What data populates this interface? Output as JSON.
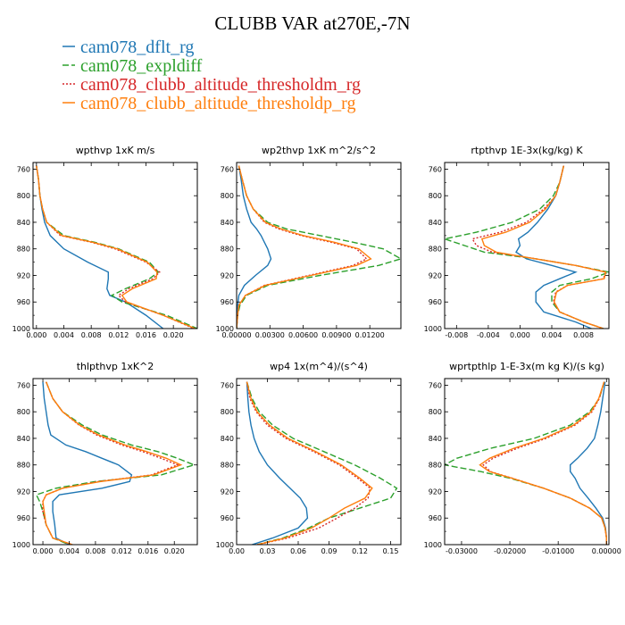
{
  "figure": {
    "title": "CLUBB VAR at270E,-7N",
    "series": [
      {
        "name": "cam078_dflt_rg",
        "color": "#1f77b4",
        "dash": "solid"
      },
      {
        "name": "cam078_expldiff",
        "color": "#2ca02c",
        "dash": "dashed"
      },
      {
        "name": "cam078_clubb_altitude_thresholdm_rg",
        "color": "#d62728",
        "dash": "dotted"
      },
      {
        "name": "cam078_clubb_altitude_thresholdp_rg",
        "color": "#ff7f0e",
        "dash": "solid"
      }
    ]
  },
  "chart_data": [
    {
      "type": "line",
      "title": "wpthvp  1xK m/s",
      "xlim": [
        -0.0005,
        0.0235
      ],
      "ylim": [
        1000,
        750
      ],
      "xticks": [
        "0.000",
        "0.004",
        "0.008",
        "0.012",
        "0.016",
        "0.020"
      ],
      "xtick_values": [
        0,
        0.004,
        0.008,
        0.012,
        0.016,
        0.02
      ],
      "yticks": [
        760,
        800,
        840,
        880,
        920,
        960,
        1000
      ],
      "y": [
        755,
        775,
        800,
        820,
        840,
        860,
        870,
        880,
        900,
        915,
        925,
        940,
        950,
        960,
        980,
        1000
      ],
      "series": [
        {
          "name": "cam078_dflt_rg",
          "values": [
            0,
            0.0003,
            0.0005,
            0.0008,
            0.0012,
            0.002,
            0.003,
            0.004,
            0.0075,
            0.0105,
            0.0105,
            0.0103,
            0.0107,
            0.013,
            0.016,
            0.0185
          ]
        },
        {
          "name": "cam078_expldiff",
          "values": [
            0,
            0.0003,
            0.0005,
            0.0009,
            0.0015,
            0.004,
            0.0085,
            0.012,
            0.0165,
            0.0178,
            0.0165,
            0.013,
            0.011,
            0.0125,
            0.019,
            0.0235
          ]
        },
        {
          "name": "cam078_clubb_altitude_thresholdm_rg",
          "values": [
            0,
            0.0003,
            0.0005,
            0.0009,
            0.0015,
            0.0035,
            0.008,
            0.0115,
            0.016,
            0.018,
            0.017,
            0.0135,
            0.012,
            0.013,
            0.0185,
            0.023
          ]
        },
        {
          "name": "cam078_clubb_altitude_thresholdp_rg",
          "values": [
            0,
            0.0003,
            0.0005,
            0.0009,
            0.0015,
            0.0037,
            0.0082,
            0.0118,
            0.0162,
            0.0176,
            0.0175,
            0.014,
            0.0125,
            0.0132,
            0.0185,
            0.0232
          ]
        }
      ]
    },
    {
      "type": "line",
      "title": "wp2thvp  1xK m^2/s^2",
      "xlim": [
        0,
        0.0148
      ],
      "ylim": [
        1000,
        750
      ],
      "xticks": [
        "0.00000",
        "0.00300",
        "0.00600",
        "0.00900",
        "0.01200"
      ],
      "xtick_values": [
        0,
        0.003,
        0.006,
        0.009,
        0.012
      ],
      "yticks": [
        760,
        800,
        840,
        880,
        920,
        960,
        1000
      ],
      "y": [
        755,
        775,
        800,
        820,
        840,
        850,
        860,
        870,
        880,
        895,
        905,
        920,
        935,
        950,
        965,
        980,
        1000
      ],
      "series": [
        {
          "name": "cam078_dflt_rg",
          "values": [
            0.0002,
            0.0004,
            0.0006,
            0.0009,
            0.0013,
            0.0018,
            0.0022,
            0.0025,
            0.0028,
            0.0031,
            0.0028,
            0.0017,
            0.0007,
            0.0002,
            0.0001,
            0,
            0
          ]
        },
        {
          "name": "cam078_expldiff",
          "values": [
            0.0002,
            0.0005,
            0.0009,
            0.0015,
            0.0028,
            0.0045,
            0.0075,
            0.0105,
            0.0132,
            0.0148,
            0.0128,
            0.0075,
            0.0028,
            0.0009,
            0.0003,
            0.0001,
            0
          ]
        },
        {
          "name": "cam078_clubb_altitude_thresholdm_rg",
          "values": [
            0.0002,
            0.0005,
            0.0009,
            0.0015,
            0.0025,
            0.0038,
            0.0058,
            0.0085,
            0.0108,
            0.0117,
            0.0105,
            0.0065,
            0.0025,
            0.0008,
            0.0002,
            0.0001,
            0
          ]
        },
        {
          "name": "cam078_clubb_altitude_thresholdp_rg",
          "values": [
            0.0002,
            0.0005,
            0.0009,
            0.0015,
            0.0026,
            0.004,
            0.006,
            0.0088,
            0.011,
            0.0121,
            0.0108,
            0.0067,
            0.0026,
            0.0008,
            0.0002,
            0.0001,
            0
          ]
        }
      ]
    },
    {
      "type": "line",
      "title": "rtpthvp  1E-3x(kg/kg) K",
      "xlim": [
        -0.0095,
        0.0112
      ],
      "ylim": [
        1000,
        750
      ],
      "xticks": [
        "-0.008",
        "-0.004",
        "0.000",
        "0.004",
        "0.008"
      ],
      "xtick_values": [
        -0.008,
        -0.004,
        0,
        0.004,
        0.008
      ],
      "yticks": [
        760,
        800,
        840,
        880,
        920,
        960,
        1000
      ],
      "y": [
        755,
        780,
        800,
        820,
        840,
        855,
        865,
        875,
        885,
        895,
        905,
        915,
        925,
        935,
        945,
        960,
        975,
        990,
        1000
      ],
      "series": [
        {
          "name": "cam078_dflt_rg",
          "values": [
            0.0055,
            0.005,
            0.0045,
            0.0035,
            0.0022,
            0.001,
            -0.0002,
            0,
            -0.0005,
            0.0008,
            0.004,
            0.007,
            0.005,
            0.003,
            0.002,
            0.002,
            0.003,
            0.007,
            0.009
          ]
        },
        {
          "name": "cam078_expldiff",
          "values": [
            0.0055,
            0.005,
            0.0042,
            0.0025,
            -0.001,
            -0.0055,
            -0.0095,
            -0.007,
            -0.0045,
            0.002,
            0.007,
            0.0112,
            0.009,
            0.005,
            0.004,
            0.004,
            0.005,
            0.008,
            0.0105
          ]
        },
        {
          "name": "cam078_clubb_altitude_thresholdm_rg",
          "values": [
            0.0055,
            0.005,
            0.0045,
            0.003,
            0.0008,
            -0.0025,
            -0.006,
            -0.0055,
            -0.0035,
            0.002,
            0.007,
            0.0108,
            0.0105,
            0.006,
            0.0045,
            0.0042,
            0.005,
            0.008,
            0.0105
          ]
        },
        {
          "name": "cam078_clubb_altitude_thresholdp_rg",
          "values": [
            0.0055,
            0.005,
            0.0045,
            0.0032,
            0.0012,
            -0.0018,
            -0.0048,
            -0.0045,
            -0.003,
            0.002,
            0.007,
            0.0108,
            0.0106,
            0.006,
            0.0046,
            0.0043,
            0.005,
            0.008,
            0.0105
          ]
        }
      ]
    },
    {
      "type": "line",
      "title": "thlpthvp  1xK^2",
      "xlim": [
        -0.0015,
        0.0235
      ],
      "ylim": [
        1000,
        750
      ],
      "xticks": [
        "0.000",
        "0.004",
        "0.008",
        "0.012",
        "0.016",
        "0.020"
      ],
      "xtick_values": [
        0,
        0.004,
        0.008,
        0.012,
        0.016,
        0.02
      ],
      "yticks": [
        760,
        800,
        840,
        880,
        920,
        960,
        1000
      ],
      "y": [
        755,
        780,
        800,
        820,
        835,
        850,
        860,
        870,
        880,
        895,
        905,
        915,
        925,
        935,
        950,
        970,
        990,
        1000
      ],
      "series": [
        {
          "name": "cam078_dflt_rg",
          "values": [
            0,
            0.0002,
            0.0005,
            0.0008,
            0.0012,
            0.0035,
            0.0065,
            0.009,
            0.0115,
            0.0135,
            0.0132,
            0.009,
            0.0025,
            0.0015,
            0.0015,
            0.0018,
            0.002,
            0.004
          ]
        },
        {
          "name": "cam078_expldiff",
          "values": [
            0.0005,
            0.0015,
            0.003,
            0.006,
            0.009,
            0.0135,
            0.0175,
            0.0205,
            0.023,
            0.018,
            0.008,
            0.002,
            -0.001,
            -0.0005,
            0,
            0.0005,
            0.0015,
            0.004
          ]
        },
        {
          "name": "cam078_clubb_altitude_thresholdm_rg",
          "values": [
            0.0005,
            0.0015,
            0.003,
            0.0055,
            0.0082,
            0.012,
            0.0152,
            0.018,
            0.0205,
            0.0165,
            0.0085,
            0.003,
            0.0005,
            0,
            0,
            0.0005,
            0.0015,
            0.0045
          ]
        },
        {
          "name": "cam078_clubb_altitude_thresholdp_rg",
          "values": [
            0.0005,
            0.0015,
            0.003,
            0.0056,
            0.0085,
            0.0125,
            0.0158,
            0.0188,
            0.021,
            0.0168,
            0.0088,
            0.003,
            0.0005,
            0,
            0.0002,
            0.0005,
            0.0015,
            0.0045
          ]
        }
      ]
    },
    {
      "type": "line",
      "title": "wp4  1x(m^4)/(s^4)",
      "xlim": [
        0,
        0.16
      ],
      "ylim": [
        1000,
        750
      ],
      "xticks": [
        "0.00",
        "0.03",
        "0.06",
        "0.09",
        "0.12",
        "0.15"
      ],
      "xtick_values": [
        0,
        0.03,
        0.06,
        0.09,
        0.12,
        0.15
      ],
      "yticks": [
        760,
        800,
        840,
        880,
        920,
        960,
        1000
      ],
      "y": [
        755,
        780,
        800,
        820,
        840,
        860,
        880,
        900,
        915,
        930,
        945,
        960,
        975,
        990,
        1000
      ],
      "series": [
        {
          "name": "cam078_dflt_rg",
          "values": [
            0.01,
            0.011,
            0.012,
            0.014,
            0.017,
            0.022,
            0.03,
            0.042,
            0.052,
            0.062,
            0.068,
            0.069,
            0.06,
            0.035,
            0.015
          ]
        },
        {
          "name": "cam078_expldiff",
          "values": [
            0.01,
            0.015,
            0.022,
            0.035,
            0.055,
            0.085,
            0.115,
            0.14,
            0.156,
            0.15,
            0.12,
            0.09,
            0.07,
            0.045,
            0.02
          ]
        },
        {
          "name": "cam078_clubb_altitude_thresholdm_rg",
          "values": [
            0.01,
            0.013,
            0.019,
            0.03,
            0.048,
            0.075,
            0.1,
            0.118,
            0.13,
            0.128,
            0.115,
            0.098,
            0.08,
            0.05,
            0.02
          ]
        },
        {
          "name": "cam078_clubb_altitude_thresholdp_rg",
          "values": [
            0.01,
            0.014,
            0.02,
            0.032,
            0.05,
            0.077,
            0.102,
            0.12,
            0.132,
            0.125,
            0.105,
            0.09,
            0.073,
            0.047,
            0.02
          ]
        }
      ]
    },
    {
      "type": "line",
      "title": "wprtpthlp  1-E-3x(m kg K)/(s kg)",
      "xlim": [
        -0.0335,
        0.0005
      ],
      "ylim": [
        1000,
        750
      ],
      "xticks": [
        "-0.03000",
        "-0.02000",
        "-0.01000",
        "0.00000"
      ],
      "xtick_values": [
        -0.03,
        -0.02,
        -0.01,
        0
      ],
      "yticks": [
        760,
        800,
        840,
        880,
        920,
        960,
        1000
      ],
      "y": [
        755,
        780,
        800,
        820,
        840,
        855,
        870,
        880,
        890,
        900,
        915,
        930,
        945,
        960,
        975,
        990,
        1000
      ],
      "series": [
        {
          "name": "cam078_dflt_rg",
          "values": [
            -0.0003,
            -0.0008,
            -0.0012,
            -0.0018,
            -0.0025,
            -0.004,
            -0.006,
            -0.0075,
            -0.0075,
            -0.0065,
            -0.0055,
            -0.0038,
            -0.0022,
            -0.0008,
            -0.0002,
            0,
            0
          ]
        },
        {
          "name": "cam078_expldiff",
          "values": [
            -0.0005,
            -0.0015,
            -0.0035,
            -0.0075,
            -0.015,
            -0.024,
            -0.031,
            -0.0335,
            -0.026,
            -0.02,
            -0.013,
            -0.0075,
            -0.0035,
            -0.001,
            -0.0003,
            0,
            0
          ]
        },
        {
          "name": "cam078_clubb_altitude_thresholdm_rg",
          "values": [
            -0.0005,
            -0.0015,
            -0.003,
            -0.0065,
            -0.0125,
            -0.0185,
            -0.0235,
            -0.0255,
            -0.024,
            -0.0195,
            -0.013,
            -0.0075,
            -0.0035,
            -0.001,
            -0.0003,
            0,
            0
          ]
        },
        {
          "name": "cam078_clubb_altitude_thresholdp_rg",
          "values": [
            -0.0005,
            -0.0016,
            -0.0032,
            -0.0068,
            -0.013,
            -0.0192,
            -0.0242,
            -0.0262,
            -0.0242,
            -0.0196,
            -0.013,
            -0.0075,
            -0.0035,
            -0.001,
            -0.0003,
            0,
            0
          ]
        }
      ]
    }
  ]
}
